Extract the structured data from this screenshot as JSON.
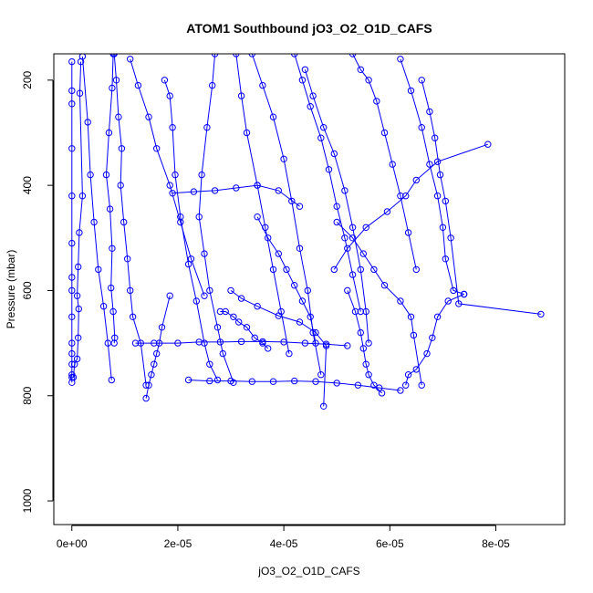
{
  "chart_data": {
    "type": "line",
    "title": "ATOM1 Southbound jO3_O2_O1D_CAFS",
    "xlabel": "jO3_O2_O1D_CAFS",
    "ylabel": "Pressure (mbar)",
    "xlim": [
      -3.4e-06,
      9.3e-05
    ],
    "ylim": [
      1045,
      150
    ],
    "y_reversed": true,
    "x_ticks": [
      {
        "value": 0,
        "label": "0e+00"
      },
      {
        "value": 2e-05,
        "label": "2e-05"
      },
      {
        "value": 4e-05,
        "label": "4e-05"
      },
      {
        "value": 6e-05,
        "label": "6e-05"
      },
      {
        "value": 8e-05,
        "label": "8e-05"
      }
    ],
    "y_ticks": [
      {
        "value": 200,
        "label": "200"
      },
      {
        "value": 400,
        "label": "400"
      },
      {
        "value": 600,
        "label": "600"
      },
      {
        "value": 800,
        "label": "800"
      },
      {
        "value": 1000,
        "label": "1000"
      }
    ],
    "color": "#0000ff",
    "marker": "open-circle",
    "series": [
      {
        "x": [
          0,
          0,
          0,
          0,
          0,
          0,
          0,
          0,
          0,
          0,
          0,
          0,
          0,
          0,
          0
        ],
        "y": [
          165,
          220,
          245,
          330,
          420,
          510,
          575,
          600,
          650,
          700,
          720,
          740,
          760,
          765,
          775
        ]
      },
      {
        "x": [
          1.7e-06,
          1.5e-06,
          2e-06,
          1.4e-06,
          1.2e-06,
          1e-06,
          1.3e-06,
          1.2e-06,
          1e-06,
          5e-07,
          3e-07
        ],
        "y": [
          165,
          225,
          420,
          490,
          555,
          610,
          635,
          690,
          730,
          740,
          765
        ]
      },
      {
        "x": [
          7.8e-06,
          7.6e-06,
          7e-06,
          6.5e-06,
          7.2e-06,
          7.6e-06,
          7.4e-06,
          7.8e-06,
          8.1e-06,
          8e-06
        ],
        "y": [
          150,
          215,
          300,
          380,
          445,
          520,
          595,
          640,
          690,
          700
        ]
      },
      {
        "x": [
          8e-06,
          8.4e-06,
          8.8e-06,
          9.4e-06,
          9.2e-06,
          9.8e-06,
          1.05e-05,
          1.1e-05,
          1.15e-05,
          1.3e-05,
          1.4e-05
        ],
        "y": [
          150,
          200,
          270,
          330,
          400,
          470,
          540,
          600,
          650,
          700,
          780
        ]
      },
      {
        "x": [
          1.1e-05,
          1.25e-05,
          1.45e-05,
          1.6e-05,
          1.85e-05,
          2.05e-05,
          2.25e-05,
          2.5e-05
        ],
        "y": [
          160,
          210,
          270,
          330,
          400,
          470,
          540,
          610
        ]
      },
      {
        "x": [
          2e-06,
          3e-06,
          3.5e-06,
          4.2e-06,
          5e-06,
          6e-06,
          6.8e-06,
          7.5e-06
        ],
        "y": [
          155,
          280,
          380,
          470,
          560,
          630,
          700,
          770
        ]
      },
      {
        "x": [
          1.75e-05,
          1.85e-05,
          1.9e-05,
          1.95e-05,
          2.05e-05,
          2.2e-05,
          2.35e-05,
          2.5e-05,
          2.6e-05,
          2.75e-05
        ],
        "y": [
          200,
          230,
          290,
          380,
          460,
          550,
          620,
          700,
          740,
          770
        ]
      },
      {
        "x": [
          2.7e-05,
          2.65e-05,
          2.55e-05,
          2.45e-05,
          2.4e-05,
          2.5e-05,
          2.6e-05,
          2.75e-05,
          2.85e-05,
          3.05e-05
        ],
        "y": [
          150,
          210,
          290,
          380,
          460,
          530,
          600,
          670,
          720,
          775
        ]
      },
      {
        "x": [
          3.1e-05,
          3.2e-05,
          3.3e-05,
          3.5e-05,
          3.65e-05,
          3.8e-05,
          3.95e-05,
          4.1e-05
        ],
        "y": [
          150,
          230,
          300,
          400,
          480,
          560,
          640,
          720
        ]
      },
      {
        "x": [
          3.4e-05,
          3.6e-05,
          3.8e-05,
          4e-05,
          4.15e-05,
          4.3e-05,
          4.45e-05,
          4.55e-05,
          4.7e-05
        ],
        "y": [
          150,
          210,
          270,
          350,
          430,
          520,
          600,
          680,
          760
        ]
      },
      {
        "x": [
          4.2e-05,
          4.35e-05,
          4.5e-05,
          4.7e-05,
          4.85e-05,
          5e-05,
          5.15e-05,
          5.3e-05,
          5.45e-05
        ],
        "y": [
          150,
          200,
          250,
          310,
          370,
          440,
          500,
          570,
          640
        ]
      },
      {
        "x": [
          4.4e-05,
          4.55e-05,
          4.75e-05,
          4.95e-05,
          5.15e-05,
          5.3e-05,
          5.45e-05,
          5.55e-05,
          5.6e-05
        ],
        "y": [
          180,
          230,
          290,
          340,
          410,
          480,
          560,
          640,
          700
        ]
      },
      {
        "x": [
          5.3e-05,
          5.45e-05,
          5.6e-05,
          5.75e-05,
          5.9e-05,
          6.05e-05,
          6.2e-05,
          6.35e-05,
          6.5e-05
        ],
        "y": [
          150,
          180,
          200,
          240,
          300,
          360,
          420,
          490,
          560
        ]
      },
      {
        "x": [
          6.2e-05,
          6.4e-05,
          6.6e-05,
          6.75e-05,
          6.9e-05,
          7e-05,
          7.05e-05,
          7.2e-05,
          7.4e-05
        ],
        "y": [
          160,
          220,
          290,
          360,
          420,
          480,
          540,
          600,
          607
        ]
      },
      {
        "x": [
          6.6e-05,
          6.75e-05,
          6.85e-05,
          6.95e-05,
          7.05e-05,
          7.15e-05,
          7.3e-05,
          8.85e-05
        ],
        "y": [
          200,
          260,
          310,
          380,
          430,
          500,
          625,
          645
        ]
      },
      {
        "x": [
          7.85e-05,
          6.9e-05,
          6.5e-05,
          6.3e-05,
          5.95e-05,
          5.55e-05,
          5.2e-05,
          4.95e-05
        ],
        "y": [
          322,
          355,
          390,
          420,
          450,
          480,
          520,
          560
        ]
      },
      {
        "x": [
          1.2e-05,
          1.55e-05,
          2e-05,
          2.4e-05,
          2.8e-05,
          3.2e-05,
          3.6e-05,
          4e-05,
          4.4e-05,
          4.8e-05,
          5.2e-05
        ],
        "y": [
          700,
          700,
          700,
          698,
          698,
          697,
          697,
          698,
          700,
          702,
          705
        ]
      },
      {
        "x": [
          2.2e-05,
          2.6e-05,
          3e-05,
          3.4e-05,
          3.8e-05,
          4.2e-05,
          4.6e-05,
          5e-05,
          5.4e-05,
          5.8e-05,
          6.2e-05
        ],
        "y": [
          770,
          772,
          772,
          773,
          773,
          772,
          773,
          776,
          780,
          785,
          790
        ]
      },
      {
        "x": [
          1.9e-05,
          2.3e-05,
          2.7e-05,
          3.1e-05,
          3.5e-05,
          3.9e-05,
          4.3e-05
        ],
        "y": [
          415,
          412,
          410,
          405,
          400,
          410,
          440
        ]
      },
      {
        "x": [
          3e-05,
          3.2e-05,
          3.5e-05,
          3.9e-05,
          4.3e-05,
          4.6e-05,
          4.8e-05,
          4.75e-05
        ],
        "y": [
          600,
          615,
          630,
          648,
          660,
          680,
          705,
          820
        ]
      },
      {
        "x": [
          5e-05,
          5.3e-05,
          5.5e-05,
          5.7e-05,
          5.9e-05,
          6.2e-05,
          6.4e-05,
          6.45e-05,
          6.6e-05
        ],
        "y": [
          470,
          500,
          530,
          560,
          590,
          620,
          650,
          685,
          780
        ]
      },
      {
        "x": [
          1.4e-05,
          1.45e-05,
          1.5e-05,
          1.55e-05,
          1.6e-05,
          1.65e-05,
          1.7e-05,
          1.85e-05
        ],
        "y": [
          805,
          780,
          760,
          740,
          720,
          700,
          670,
          610
        ]
      },
      {
        "x": [
          3.5e-05,
          3.7e-05,
          3.9e-05,
          4.05e-05,
          4.2e-05,
          4.35e-05,
          4.5e-05,
          4.6e-05
        ],
        "y": [
          460,
          500,
          530,
          560,
          590,
          620,
          650,
          700
        ]
      },
      {
        "x": [
          7.4e-05,
          7.1e-05,
          6.9e-05,
          6.8e-05,
          6.7e-05,
          6.5e-05,
          6.35e-05,
          6.3e-05
        ],
        "y": [
          607,
          620,
          650,
          690,
          720,
          750,
          760,
          780
        ]
      },
      {
        "x": [
          2.8e-05,
          2.9e-05,
          3.05e-05,
          3.15e-05,
          3.3e-05,
          3.45e-05,
          3.6e-05,
          3.7e-05
        ],
        "y": [
          640,
          640,
          650,
          660,
          670,
          690,
          700,
          710
        ]
      },
      {
        "x": [
          5.2e-05,
          5.35e-05,
          5.45e-05,
          5.5e-05,
          5.55e-05,
          5.6e-05,
          5.7e-05,
          5.85e-05
        ],
        "y": [
          600,
          640,
          680,
          710,
          740,
          760,
          780,
          795
        ]
      }
    ]
  }
}
